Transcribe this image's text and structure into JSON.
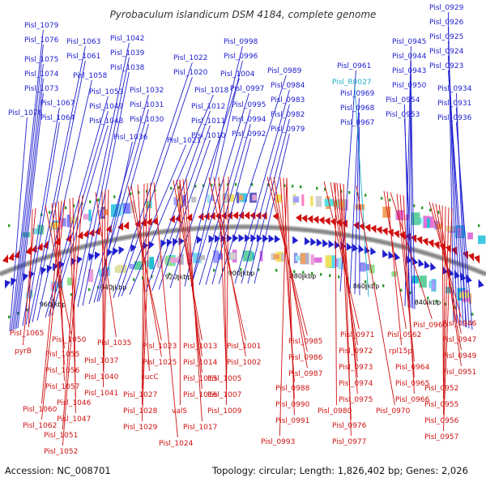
{
  "title": "Pyrobaculum islandicum DSM 4184, complete genome",
  "footer": {
    "accession": "Accession: NC_008701",
    "topology": "Topology: circular; Length: 1,826,402 bp; Genes: 2,026"
  },
  "colors": {
    "forward": "#2020d0",
    "reverse": "#d01010",
    "rna": "#20b0c8",
    "backbone": "#8a8a8a",
    "category_marker": "#2a9d2a"
  },
  "ticks": [
    "960 kbp",
    "940 kbp",
    "920 kbp",
    "900 kbp",
    "880 kbp",
    "860 kbp",
    "840 kbp"
  ],
  "forward_labels": [
    "Pisl_1079",
    "Pisl_1076",
    "Pisl_1075",
    "Pisl_1074",
    "Pisl_1073",
    "Pisl_1078",
    "Pisl_1067",
    "Pisl_1064",
    "Pisl_1063",
    "Pisl_1061",
    "Pisl_1058",
    "Pisl_1053",
    "Pisl_1049",
    "Pisl_1048",
    "Pisl_1042",
    "Pisl_1039",
    "Pisl_1038",
    "Pisl_1032",
    "Pisl_1031",
    "Pisl_1030",
    "Pisl_1036",
    "Pisl_1022",
    "Pisl_1020",
    "Pisl_1018",
    "Pisl_1021",
    "Pisl_1012",
    "Pisl_1011",
    "Pisl_1010",
    "Pisl_1004",
    "Pisl_0998",
    "Pisl_0996",
    "Pisl_0997",
    "Pisl_0995",
    "Pisl_0994",
    "Pisl_0992",
    "Pisl_0989",
    "Pisl_0984",
    "Pisl_0983",
    "Pisl_0982",
    "Pisl_0979",
    "Pisl_0961",
    "Pisl_0969",
    "Pisl_0968",
    "Pisl_0967",
    "Pisl_0945",
    "Pisl_0944",
    "Pisl_0943",
    "Pisl_0950",
    "Pisl_0954",
    "Pisl_0953",
    "Pisl_0929",
    "Pisl_0926",
    "Pisl_0925",
    "Pisl_0924",
    "Pisl_0923",
    "Pisl_0934",
    "Pisl_0931",
    "Pisl_0936"
  ],
  "rna_labels": [
    "Pisl_R0027"
  ],
  "reverse_labels": [
    "Pisl_1065",
    "pyrB",
    "Pisl_1050",
    "Pisl_1055",
    "Pisl_1056",
    "Pisl_1057",
    "Pisl_1060",
    "Pisl_1062",
    "Pisl_1046",
    "Pisl_1047",
    "Pisl_1051",
    "Pisl_1052",
    "Pisl_1035",
    "Pisl_1037",
    "Pisl_1040",
    "Pisl_1041",
    "Pisl_1023",
    "Pisl_1025",
    "sucC",
    "Pisl_1027",
    "Pisl_1028",
    "Pisl_1029",
    "Pisl_1024",
    "Pisl_1013",
    "Pisl_1014",
    "Pisl_1015",
    "Pisl_1016",
    "valS",
    "Pisl_1017",
    "Pisl_1001",
    "Pisl_1002",
    "Pisl_1005",
    "Pisl_1007",
    "Pisl_1009",
    "Pisl_0985",
    "Pisl_0986",
    "Pisl_0987",
    "Pisl_0988",
    "Pisl_0990",
    "Pisl_0991",
    "Pisl_0993",
    "Pisl_0971",
    "Pisl_0972",
    "Pisl_0973",
    "Pisl_0974",
    "Pisl_0975",
    "Pisl_0980",
    "Pisl_0976",
    "Pisl_0977",
    "Pisl_0970",
    "Pisl_0960",
    "Pisl_0962",
    "rpl15p",
    "Pisl_0964",
    "Pisl_0965",
    "Pisl_0966",
    "Pisl_0946",
    "Pisl_0947",
    "Pisl_0949",
    "Pisl_0951",
    "Pisl_0952",
    "Pisl_0955",
    "Pisl_0956",
    "Pisl_0957"
  ]
}
